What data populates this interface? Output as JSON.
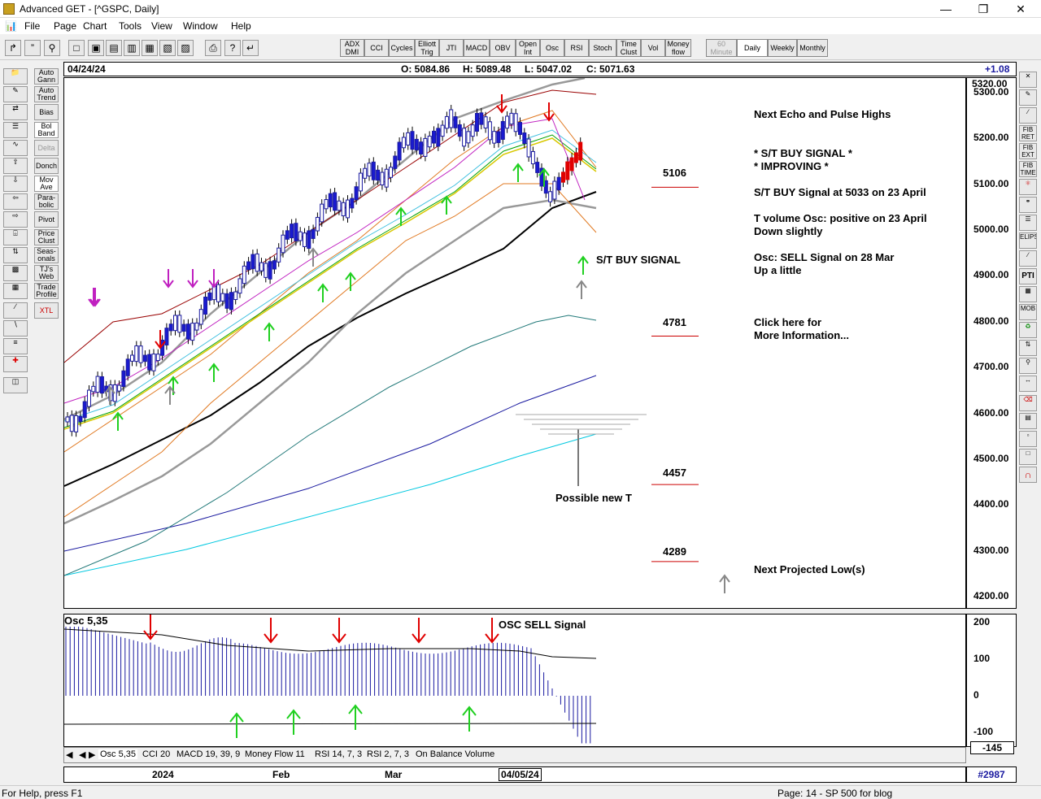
{
  "window": {
    "title": "Advanced GET - [^GSPC, Daily]"
  },
  "menu": [
    "File",
    "Page",
    "Chart",
    "Tools",
    "View",
    "Window",
    "Help"
  ],
  "toolbar": {
    "indicators": [
      "ADX DMI",
      "CCI",
      "Cycles",
      "Elliott Trig",
      "JTI",
      "MACD",
      "OBV",
      "Open Int",
      "Osc",
      "RSI",
      "Stoch",
      "Time Clust",
      "Vol",
      "Money flow"
    ],
    "timeframes": [
      "60 Minute",
      "Daily",
      "Weekly",
      "Monthly"
    ]
  },
  "leftbar": {
    "studies": [
      "Auto Gann",
      "Auto Trend",
      "Bias",
      "Bol Band",
      "Delta",
      "Donch",
      "Mov Ave",
      "Para-bolic",
      "Pivot",
      "Price Clust",
      "Seas-onals",
      "TJ's Web",
      "Trade Profile",
      "XTL"
    ]
  },
  "rightbar": {
    "tools": [
      "FIB RET",
      "FIB EXT",
      "FIB TIME",
      "ELIPS",
      "PTI",
      "MOB"
    ]
  },
  "header": {
    "date": "04/24/24",
    "open": "O: 5084.86",
    "high": "H: 5089.48",
    "low": "L: 5047.02",
    "close": "C: 5071.63",
    "change": "+1.08"
  },
  "annotations": {
    "next_echo": "Next Echo and Pulse Highs",
    "st_buy": "* S/T BUY SIGNAL *",
    "improving": "* IMPROVING *",
    "st_buy_at": "S/T BUY Signal at 5033 on 23 April",
    "tvol1": "T volume Osc: positive on 23 April",
    "tvol2": "Down slightly",
    "osc1": "Osc: SELL Signal on 28 Mar",
    "osc2": "Up a little",
    "click1": "Click here for",
    "click2": "More Information...",
    "next_low": "Next Projected Low(s)",
    "st_buy_label": "S/T BUY SIGNAL",
    "possible_t": "Possible new T",
    "osc_sell": "OSC SELL Signal"
  },
  "levels": [
    "5106",
    "4781",
    "4457",
    "4289"
  ],
  "chart_data": {
    "type": "line",
    "ylim": [
      4200,
      5320
    ],
    "yticks": [
      "5300.00",
      "5200.00",
      "5100.00",
      "5000.00",
      "4900.00",
      "4800.00",
      "4700.00",
      "4600.00",
      "4500.00",
      "4400.00",
      "4300.00",
      "4200.00"
    ],
    "top_label": "5320.00",
    "osc_label": "Osc 5,35",
    "osc_ylim": [
      -145,
      220
    ],
    "osc_ticks": [
      "200",
      "100",
      "0",
      "-100"
    ],
    "osc_current": "-145"
  },
  "tabs": [
    "Osc 5,35",
    "CCI 20",
    "MACD 19, 39, 9",
    "Money Flow 11",
    "RSI 14, 7, 3",
    "RSI 2, 7, 3",
    "On Balance Volume"
  ],
  "dates": [
    "2024",
    "Feb",
    "Mar",
    "04/05/24"
  ],
  "bar_count": "#2987",
  "status": {
    "help": "For Help, press F1",
    "page": "Page: 14 - SP 500 for blog"
  }
}
